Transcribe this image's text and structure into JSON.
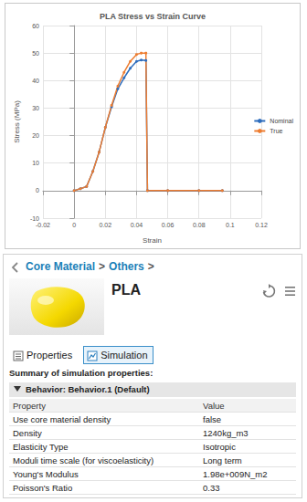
{
  "chart_data": {
    "type": "line",
    "title": "PLA Stress vs Strain Curve",
    "x_label": "Strain",
    "y_label": "Stress (MPa)",
    "x": [
      0,
      0.004,
      0.008,
      0.012,
      0.016,
      0.02,
      0.024,
      0.028,
      0.032,
      0.036,
      0.04,
      0.043,
      0.046,
      0.047,
      0.06,
      0.08,
      0.095
    ],
    "series": [
      {
        "name": "Nominal",
        "color": "#2e6dbd",
        "marker": "circle",
        "values": [
          0,
          0.7,
          1.5,
          7,
          14,
          23,
          30.5,
          37,
          41,
          44.5,
          47,
          47.5,
          47.3,
          0,
          0,
          0,
          0
        ]
      },
      {
        "name": "True",
        "color": "#ed7d31",
        "marker": "circle",
        "values": [
          0,
          0.7,
          1.5,
          7,
          14,
          23,
          31,
          38,
          43,
          47,
          49.5,
          50,
          50,
          0,
          0,
          0,
          0
        ]
      }
    ],
    "xlim": [
      -0.02,
      0.12
    ],
    "xticks": [
      -0.02,
      0,
      0.02,
      0.04,
      0.06,
      0.08,
      0.1,
      0.12
    ],
    "ylim": [
      -10,
      60
    ],
    "yticks": [
      -10,
      0,
      10,
      20,
      30,
      40,
      50,
      60
    ],
    "grid": true,
    "legend": "right"
  },
  "panel": {
    "breadcrumb": [
      "Core Material",
      "Others"
    ],
    "separator": ">",
    "material_name": "PLA",
    "tabs": [
      {
        "label": "Properties",
        "active": false
      },
      {
        "label": "Simulation",
        "active": true
      }
    ],
    "summary": "Summary of simulation properties:",
    "behavior": "Behavior: Behavior.1 (Default)",
    "table": {
      "header": [
        "Property",
        "Value"
      ],
      "rows": [
        [
          "Use core material density",
          "false"
        ],
        [
          "Density",
          "1240kg_m3"
        ],
        [
          "Elasticity Type",
          "Isotropic"
        ],
        [
          "Moduli time scale (for viscoelasticity)",
          "Long term"
        ],
        [
          "Young's Modulus",
          "1.98e+009N_m2"
        ],
        [
          "Poisson's Ratio",
          "0.33"
        ]
      ]
    }
  }
}
